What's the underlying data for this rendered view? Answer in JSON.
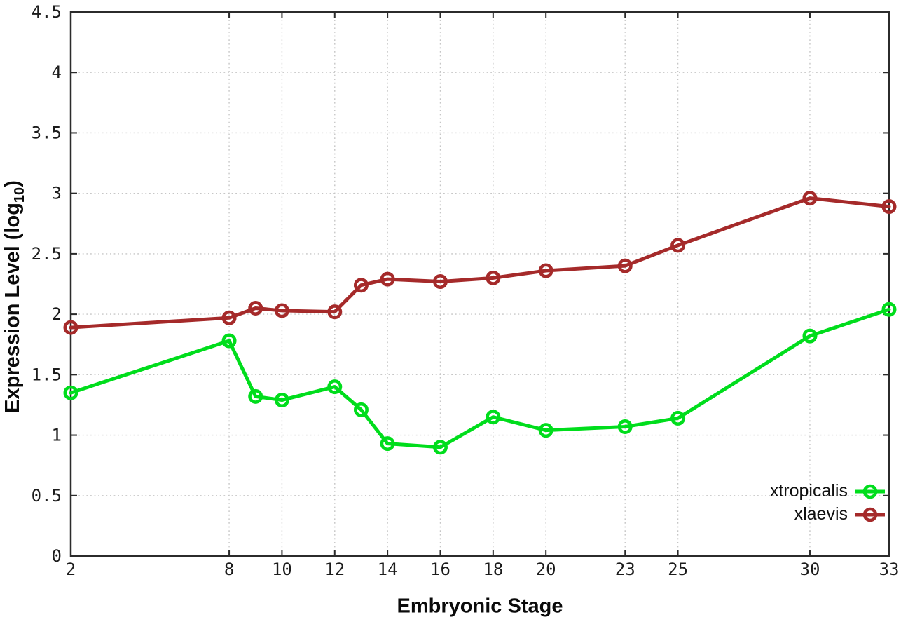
{
  "chart_data": {
    "type": "line",
    "title": "",
    "xlabel": "Embryonic Stage",
    "ylabel": "Expression Level (log10)",
    "ylabel_prefix": "Expression Level (log",
    "ylabel_sub": "10",
    "ylabel_suffix": ")",
    "xlim": [
      2,
      33
    ],
    "ylim": [
      0,
      4.5
    ],
    "x_ticks": [
      2,
      8,
      10,
      12,
      14,
      16,
      18,
      20,
      23,
      25,
      30,
      33
    ],
    "y_ticks": [
      0,
      0.5,
      1,
      1.5,
      2,
      2.5,
      3,
      3.5,
      4,
      4.5
    ],
    "grid": true,
    "grid_style": "dotted",
    "legend_position": "inside-bottom-right",
    "x": [
      2,
      8,
      9,
      10,
      12,
      13,
      14,
      16,
      18,
      20,
      23,
      25,
      30,
      33
    ],
    "series": [
      {
        "name": "xtropicalis",
        "color": "#00dd1c",
        "values": [
          1.35,
          1.78,
          1.32,
          1.29,
          1.4,
          1.21,
          0.93,
          0.9,
          1.15,
          1.04,
          1.07,
          1.14,
          1.82,
          2.04
        ]
      },
      {
        "name": "xlaevis",
        "color": "#a52a2a",
        "values": [
          1.89,
          1.97,
          2.05,
          2.03,
          2.02,
          2.24,
          2.29,
          2.27,
          2.3,
          2.36,
          2.4,
          2.57,
          2.96,
          2.89
        ]
      }
    ],
    "marker": "open-circle",
    "colors": {
      "background": "#ffffff",
      "border": "#2b2b2b",
      "grid": "#c6c6c6",
      "tick_label": "#1c1c1c"
    }
  }
}
